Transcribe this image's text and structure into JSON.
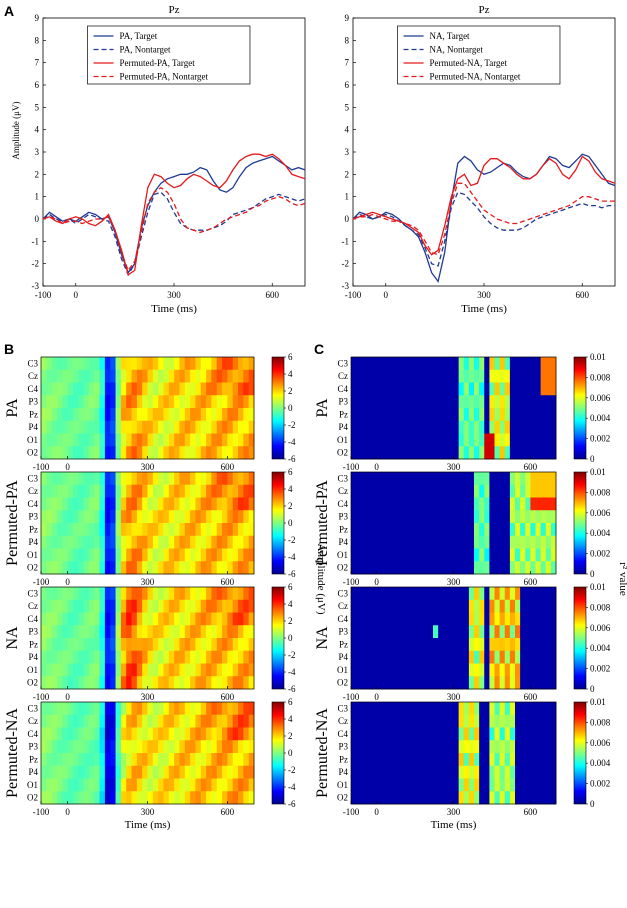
{
  "figure": {
    "panel_letters": [
      "A",
      "B",
      "C"
    ],
    "x_label": "Time (ms)",
    "y_label_A": "Amplitude (μV)",
    "colorbar_label_B": "Amplitude (μV)",
    "colorbar_label_C": "r² value"
  },
  "chart_data": [
    {
      "type": "line",
      "id": "A-left",
      "title": "Pz",
      "xlabel": "Time (ms)",
      "ylabel": "Amplitude (μV)",
      "xlim": [
        -100,
        700
      ],
      "ylim": [
        -3,
        9
      ],
      "xticks": [
        -100,
        0,
        300,
        600
      ],
      "yticks": [
        -3,
        -2,
        -1,
        0,
        1,
        2,
        3,
        4,
        5,
        6,
        7,
        8,
        9
      ],
      "x": [
        -100,
        -80,
        -60,
        -40,
        -20,
        0,
        20,
        40,
        60,
        80,
        100,
        120,
        140,
        160,
        180,
        200,
        220,
        240,
        260,
        280,
        300,
        320,
        340,
        360,
        380,
        400,
        420,
        440,
        460,
        480,
        500,
        520,
        540,
        560,
        580,
        600,
        620,
        640,
        660,
        680,
        700
      ],
      "series": [
        {
          "name": "PA, Target",
          "color": "#1f3a93",
          "dash": "solid",
          "values": [
            0.0,
            0.3,
            0.1,
            -0.1,
            0.0,
            -0.1,
            0.1,
            0.3,
            0.2,
            0.0,
            0.1,
            -0.6,
            -1.6,
            -2.4,
            -2.0,
            -0.4,
            0.6,
            1.2,
            1.6,
            1.8,
            1.9,
            2.0,
            2.0,
            2.1,
            2.3,
            2.2,
            1.7,
            1.3,
            1.2,
            1.4,
            1.9,
            2.3,
            2.5,
            2.6,
            2.7,
            2.8,
            2.6,
            2.4,
            2.2,
            2.3,
            2.2
          ]
        },
        {
          "name": "PA, Nontarget",
          "color": "#1f3a93",
          "dash": "dashed",
          "values": [
            0.0,
            0.2,
            0.0,
            -0.1,
            0.0,
            -0.2,
            0.0,
            0.2,
            0.1,
            0.0,
            -0.1,
            -0.8,
            -1.8,
            -2.5,
            -2.0,
            -0.8,
            0.3,
            1.1,
            1.2,
            0.9,
            0.3,
            -0.2,
            -0.4,
            -0.5,
            -0.5,
            -0.5,
            -0.4,
            -0.3,
            -0.1,
            0.2,
            0.3,
            0.4,
            0.5,
            0.7,
            0.9,
            1.0,
            1.1,
            1.0,
            0.9,
            0.8,
            0.9
          ]
        },
        {
          "name": "Permuted-PA, Target",
          "color": "#e41a1c",
          "dash": "solid",
          "values": [
            0.0,
            0.1,
            -0.1,
            -0.2,
            0.0,
            0.1,
            0.0,
            -0.2,
            -0.3,
            -0.1,
            0.2,
            -0.5,
            -1.4,
            -2.5,
            -2.3,
            -0.3,
            1.4,
            2.0,
            1.9,
            1.6,
            1.4,
            1.5,
            1.8,
            2.0,
            1.9,
            1.7,
            1.5,
            1.4,
            1.7,
            2.2,
            2.6,
            2.8,
            2.9,
            2.9,
            2.8,
            2.9,
            2.7,
            2.4,
            2.0,
            1.9,
            1.8
          ]
        },
        {
          "name": "Permuted-PA, Nontarget",
          "color": "#e41a1c",
          "dash": "dashed",
          "values": [
            0.0,
            0.1,
            0.0,
            -0.2,
            -0.1,
            -0.1,
            -0.2,
            -0.1,
            0.0,
            0.0,
            0.1,
            -0.5,
            -1.5,
            -2.3,
            -1.9,
            -0.6,
            0.7,
            1.2,
            1.4,
            1.2,
            0.7,
            0.0,
            -0.4,
            -0.5,
            -0.6,
            -0.5,
            -0.4,
            -0.2,
            0.0,
            0.1,
            0.2,
            0.3,
            0.5,
            0.6,
            0.8,
            0.9,
            1.0,
            0.9,
            0.7,
            0.6,
            0.7
          ]
        }
      ]
    },
    {
      "type": "line",
      "id": "A-right",
      "title": "Pz",
      "xlabel": "Time (ms)",
      "ylabel": "",
      "xlim": [
        -100,
        700
      ],
      "ylim": [
        -3,
        9
      ],
      "xticks": [
        -100,
        0,
        300,
        600
      ],
      "yticks": [
        -3,
        -2,
        -1,
        0,
        1,
        2,
        3,
        4,
        5,
        6,
        7,
        8,
        9
      ],
      "x": [
        -100,
        -80,
        -60,
        -40,
        -20,
        0,
        20,
        40,
        60,
        80,
        100,
        120,
        140,
        160,
        180,
        200,
        220,
        240,
        260,
        280,
        300,
        320,
        340,
        360,
        380,
        400,
        420,
        440,
        460,
        480,
        500,
        520,
        540,
        560,
        580,
        600,
        620,
        640,
        660,
        680,
        700
      ],
      "series": [
        {
          "name": "NA, Target",
          "color": "#1f3a93",
          "dash": "solid",
          "values": [
            0.0,
            0.3,
            0.2,
            0.0,
            0.1,
            0.3,
            0.2,
            0.0,
            -0.3,
            -0.5,
            -0.8,
            -1.5,
            -2.4,
            -2.8,
            -1.5,
            0.8,
            2.5,
            2.8,
            2.6,
            2.2,
            2.0,
            2.1,
            2.3,
            2.5,
            2.4,
            2.1,
            1.9,
            1.8,
            2.0,
            2.4,
            2.8,
            2.7,
            2.4,
            2.3,
            2.6,
            2.9,
            2.8,
            2.4,
            2.0,
            1.6,
            1.5
          ]
        },
        {
          "name": "NA, Nontarget",
          "color": "#1f3a93",
          "dash": "dashed",
          "values": [
            0.0,
            0.2,
            0.1,
            0.0,
            0.1,
            0.2,
            0.1,
            -0.1,
            -0.3,
            -0.5,
            -0.7,
            -1.3,
            -2.0,
            -2.1,
            -1.0,
            0.5,
            1.2,
            1.1,
            0.8,
            0.5,
            0.1,
            -0.2,
            -0.4,
            -0.5,
            -0.5,
            -0.5,
            -0.4,
            -0.2,
            0.0,
            0.1,
            0.2,
            0.3,
            0.4,
            0.5,
            0.6,
            0.7,
            0.6,
            0.6,
            0.5,
            0.6,
            0.6
          ]
        },
        {
          "name": "Permuted-NA, Target",
          "color": "#e41a1c",
          "dash": "solid",
          "values": [
            0.0,
            0.1,
            0.2,
            0.3,
            0.2,
            0.1,
            0.0,
            -0.1,
            -0.2,
            -0.4,
            -0.6,
            -1.2,
            -1.6,
            -1.4,
            -0.3,
            1.0,
            1.8,
            2.0,
            1.5,
            1.6,
            2.4,
            2.7,
            2.7,
            2.5,
            2.3,
            2.0,
            1.8,
            1.8,
            2.0,
            2.4,
            2.7,
            2.5,
            2.0,
            1.8,
            2.2,
            2.8,
            2.6,
            2.1,
            1.8,
            1.7,
            1.6
          ]
        },
        {
          "name": "Permuted-NA, Nontarget",
          "color": "#e41a1c",
          "dash": "dashed",
          "values": [
            0.0,
            0.1,
            0.1,
            0.2,
            0.1,
            0.0,
            -0.1,
            -0.1,
            -0.2,
            -0.3,
            -0.5,
            -1.0,
            -1.5,
            -1.6,
            -0.7,
            0.7,
            1.6,
            1.6,
            1.2,
            0.8,
            0.4,
            0.2,
            0.0,
            -0.1,
            -0.2,
            -0.2,
            -0.1,
            0.0,
            0.1,
            0.2,
            0.3,
            0.4,
            0.5,
            0.6,
            0.8,
            1.0,
            1.0,
            0.9,
            0.8,
            0.8,
            0.8
          ]
        }
      ]
    },
    {
      "type": "heatmap",
      "id": "B",
      "description": "Grand-average ERP amplitude across channels and time",
      "row_labels": [
        "PA",
        "Permuted-PA",
        "NA",
        "Permuted-NA"
      ],
      "channels": [
        "C3",
        "Cz",
        "C4",
        "P3",
        "Pz",
        "P4",
        "O1",
        "O2"
      ],
      "xlabel": "Time (ms)",
      "xlim": [
        -100,
        700
      ],
      "xticks": [
        -100,
        0,
        300,
        600
      ],
      "colorbar": {
        "label": "Amplitude (μV)",
        "range": [
          -6,
          6
        ],
        "ticks": [
          6,
          4,
          2,
          0,
          -2,
          -4,
          -6
        ]
      }
    },
    {
      "type": "heatmap",
      "id": "C",
      "description": "r² value between target and nontarget across channels and time",
      "row_labels": [
        "PA",
        "Permuted-PA",
        "NA",
        "Permuted-NA"
      ],
      "channels": [
        "C3",
        "Cz",
        "C4",
        "P3",
        "Pz",
        "P4",
        "O1",
        "O2"
      ],
      "xlabel": "Time (ms)",
      "xlim": [
        -100,
        700
      ],
      "xticks": [
        -100,
        0,
        300,
        600
      ],
      "colorbar": {
        "label": "r² value",
        "range": [
          0,
          0.01
        ],
        "ticks": [
          0.01,
          0.008,
          0.006,
          0.004,
          0.002,
          0
        ]
      }
    }
  ]
}
